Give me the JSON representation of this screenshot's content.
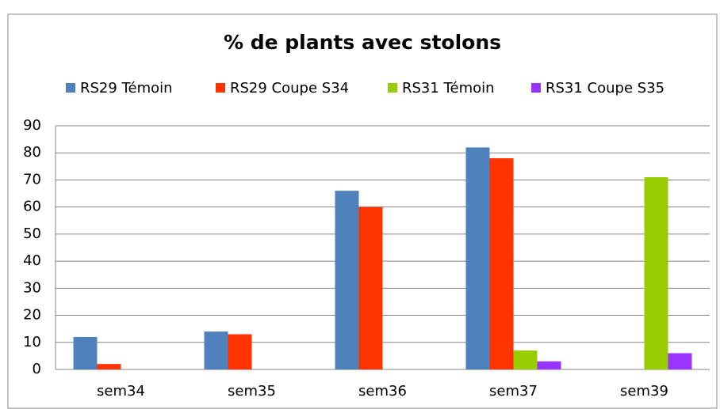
{
  "chart_data": {
    "type": "bar",
    "title": "% de plants avec stolons",
    "categories": [
      "sem34",
      "sem35",
      "sem36",
      "sem37",
      "sem39"
    ],
    "series": [
      {
        "name": "RS29 Témoin",
        "color": "#4f81bd",
        "values": [
          12,
          14,
          66,
          82,
          null
        ]
      },
      {
        "name": "RS29 Coupe S34",
        "color": "#ff3300",
        "values": [
          2,
          13,
          60,
          78,
          null
        ]
      },
      {
        "name": "RS31 Témoin",
        "color": "#99cc00",
        "values": [
          null,
          null,
          null,
          7,
          71
        ]
      },
      {
        "name": "RS31 Coupe S35",
        "color": "#9933ff",
        "values": [
          null,
          null,
          null,
          3,
          6
        ]
      }
    ],
    "ylim": [
      0,
      90
    ],
    "yticks": [
      0,
      10,
      20,
      30,
      40,
      50,
      60,
      70,
      80,
      90
    ],
    "grid": true,
    "legend": "top"
  }
}
